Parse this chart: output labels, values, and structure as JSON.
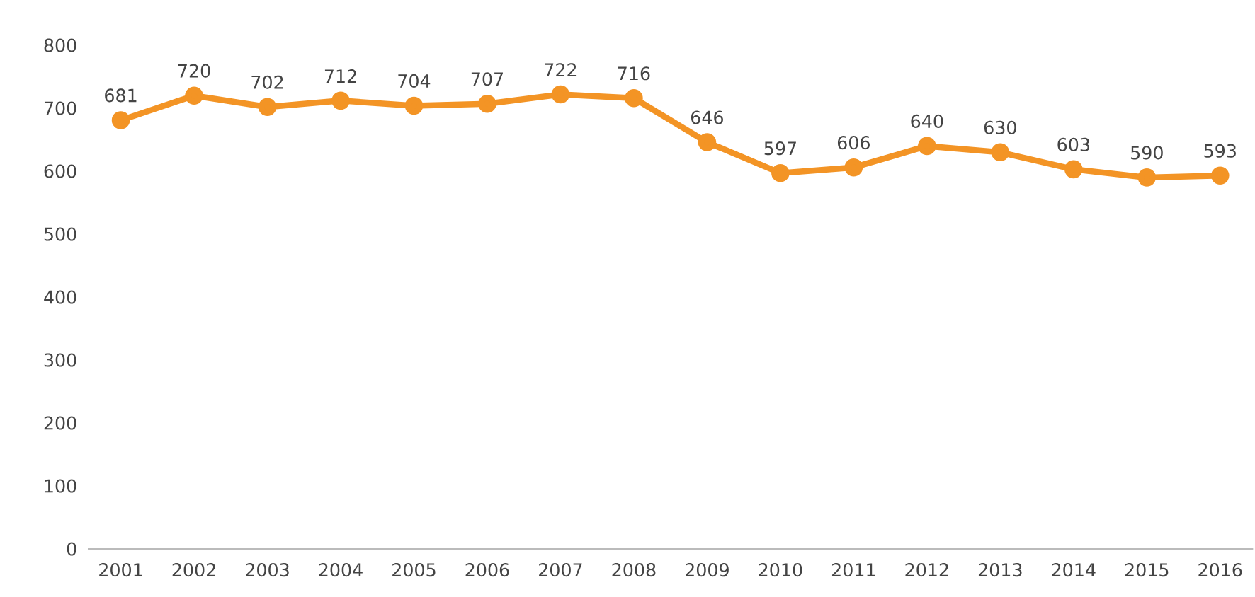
{
  "chart_data": {
    "type": "line",
    "categories": [
      "2001",
      "2002",
      "2003",
      "2004",
      "2005",
      "2006",
      "2007",
      "2008",
      "2009",
      "2010",
      "2011",
      "2012",
      "2013",
      "2014",
      "2015",
      "2016"
    ],
    "series": [
      {
        "color": "#f39425",
        "values": [
          681,
          720,
          702,
          712,
          704,
          707,
          722,
          716,
          646,
          597,
          606,
          640,
          630,
          603,
          590,
          593
        ]
      }
    ],
    "ylim": [
      0,
      800
    ],
    "yticks": [
      0,
      100,
      200,
      300,
      400,
      500,
      600,
      700,
      800
    ],
    "marker": "circle",
    "data_labels": true
  }
}
